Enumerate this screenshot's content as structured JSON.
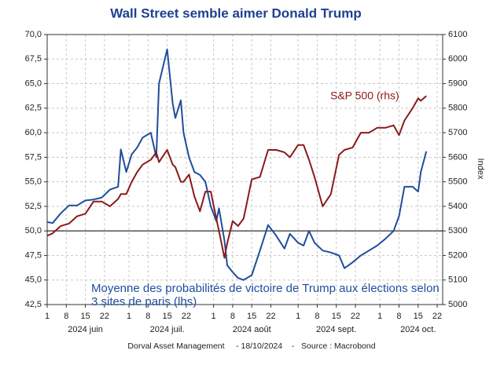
{
  "chart_data": {
    "type": "line",
    "title": "Wall Street semble aimer Donald Trump",
    "y2label": "Index",
    "source": "Dorval Asset Management     - 18/10/2024    -   Source : Macrobond",
    "x": [
      "2024-06-01",
      "2024-06-03",
      "2024-06-06",
      "2024-06-09",
      "2024-06-12",
      "2024-06-15",
      "2024-06-18",
      "2024-06-21",
      "2024-06-24",
      "2024-06-27",
      "2024-06-28",
      "2024-06-30",
      "2024-07-02",
      "2024-07-04",
      "2024-07-06",
      "2024-07-09",
      "2024-07-11",
      "2024-07-12",
      "2024-07-15",
      "2024-07-17",
      "2024-07-18",
      "2024-07-20",
      "2024-07-21",
      "2024-07-23",
      "2024-07-25",
      "2024-07-27",
      "2024-07-29",
      "2024-07-31",
      "2024-08-02",
      "2024-08-03",
      "2024-08-05",
      "2024-08-06",
      "2024-08-08",
      "2024-08-10",
      "2024-08-12",
      "2024-08-15",
      "2024-08-18",
      "2024-08-21",
      "2024-08-24",
      "2024-08-27",
      "2024-08-29",
      "2024-09-01",
      "2024-09-03",
      "2024-09-05",
      "2024-09-07",
      "2024-09-10",
      "2024-09-13",
      "2024-09-16",
      "2024-09-18",
      "2024-09-21",
      "2024-09-24",
      "2024-09-27",
      "2024-09-30",
      "2024-10-03",
      "2024-10-06",
      "2024-10-08",
      "2024-10-10",
      "2024-10-13",
      "2024-10-15",
      "2024-10-16",
      "2024-10-18"
    ],
    "series": [
      {
        "name": "Moyenne des probabilités de victoire de Trump aux élections selon 3 sites de paris (lhs)",
        "color": "#1f4e9c",
        "axis": "y",
        "values": [
          50.9,
          50.8,
          51.8,
          52.6,
          52.6,
          53.1,
          53.2,
          53.4,
          54.2,
          54.5,
          58.3,
          56.0,
          57.8,
          58.5,
          59.5,
          60.0,
          57.5,
          65.0,
          68.5,
          63.0,
          61.5,
          63.3,
          60.0,
          57.5,
          56.0,
          55.7,
          55.0,
          52.5,
          51.0,
          52.3,
          49.0,
          46.5,
          45.8,
          45.2,
          45.0,
          45.5,
          48.0,
          50.6,
          49.5,
          48.2,
          49.7,
          48.8,
          48.5,
          50.0,
          48.8,
          48.0,
          47.8,
          47.5,
          46.2,
          46.8,
          47.5,
          48.0,
          48.5,
          49.2,
          50.0,
          51.5,
          54.5,
          54.5,
          54.0,
          56.0,
          58.1
        ]
      },
      {
        "name": "S&P 500 (rhs)",
        "color": "#8b1a1a",
        "axis": "y2",
        "values": [
          5280,
          5290,
          5320,
          5330,
          5360,
          5370,
          5420,
          5420,
          5400,
          5430,
          5450,
          5450,
          5500,
          5540,
          5570,
          5590,
          5620,
          5580,
          5630,
          5570,
          5560,
          5500,
          5500,
          5530,
          5440,
          5380,
          5460,
          5460,
          5350,
          5300,
          5190,
          5250,
          5340,
          5320,
          5350,
          5510,
          5520,
          5630,
          5630,
          5620,
          5600,
          5650,
          5650,
          5590,
          5520,
          5400,
          5450,
          5610,
          5630,
          5640,
          5700,
          5700,
          5720,
          5720,
          5730,
          5690,
          5750,
          5800,
          5840,
          5830,
          5850
        ]
      }
    ],
    "xlim": [
      "2024-06-01",
      "2024-10-24"
    ],
    "xticks": [
      {
        "value": "2024-06-01",
        "label": "1"
      },
      {
        "value": "2024-06-08",
        "label": "8"
      },
      {
        "value": "2024-06-15",
        "label": "15"
      },
      {
        "value": "2024-06-22",
        "label": "22"
      },
      {
        "value": "2024-07-01",
        "label": "1"
      },
      {
        "value": "2024-07-08",
        "label": "8"
      },
      {
        "value": "2024-07-15",
        "label": "15"
      },
      {
        "value": "2024-07-22",
        "label": "22"
      },
      {
        "value": "2024-08-01",
        "label": "1"
      },
      {
        "value": "2024-08-08",
        "label": "8"
      },
      {
        "value": "2024-08-15",
        "label": "15"
      },
      {
        "value": "2024-08-22",
        "label": "22"
      },
      {
        "value": "2024-09-01",
        "label": "1"
      },
      {
        "value": "2024-09-08",
        "label": "8"
      },
      {
        "value": "2024-09-15",
        "label": "15"
      },
      {
        "value": "2024-09-22",
        "label": "22"
      },
      {
        "value": "2024-10-01",
        "label": "1"
      },
      {
        "value": "2024-10-08",
        "label": "8"
      },
      {
        "value": "2024-10-15",
        "label": "15"
      },
      {
        "value": "2024-10-22",
        "label": "22"
      }
    ],
    "xtick_groups": [
      {
        "value": "2024-06-01",
        "label": "2024 juin"
      },
      {
        "value": "2024-07-01",
        "label": "2024 juil."
      },
      {
        "value": "2024-08-01",
        "label": "2024 août"
      },
      {
        "value": "2024-09-01",
        "label": "2024 sept."
      },
      {
        "value": "2024-10-01",
        "label": "2024 oct."
      }
    ],
    "ylim": [
      42.5,
      70
    ],
    "yticks": [
      {
        "value": 42.5,
        "label": "42,5"
      },
      {
        "value": 45,
        "label": "45,0"
      },
      {
        "value": 47.5,
        "label": "47,5"
      },
      {
        "value": 50,
        "label": "50,0"
      },
      {
        "value": 52.5,
        "label": "52,5"
      },
      {
        "value": 55,
        "label": "55,0"
      },
      {
        "value": 57.5,
        "label": "57,5"
      },
      {
        "value": 60,
        "label": "60,0"
      },
      {
        "value": 62.5,
        "label": "62,5"
      },
      {
        "value": 65,
        "label": "65,0"
      },
      {
        "value": 67.5,
        "label": "67,5"
      },
      {
        "value": 70,
        "label": "70,0"
      }
    ],
    "y2lim": [
      5000,
      6100
    ],
    "y2ticks": [
      5000,
      5100,
      5200,
      5300,
      5400,
      5500,
      5600,
      5700,
      5800,
      5900,
      6000,
      6100
    ],
    "reference_line": 50,
    "grid": true
  }
}
